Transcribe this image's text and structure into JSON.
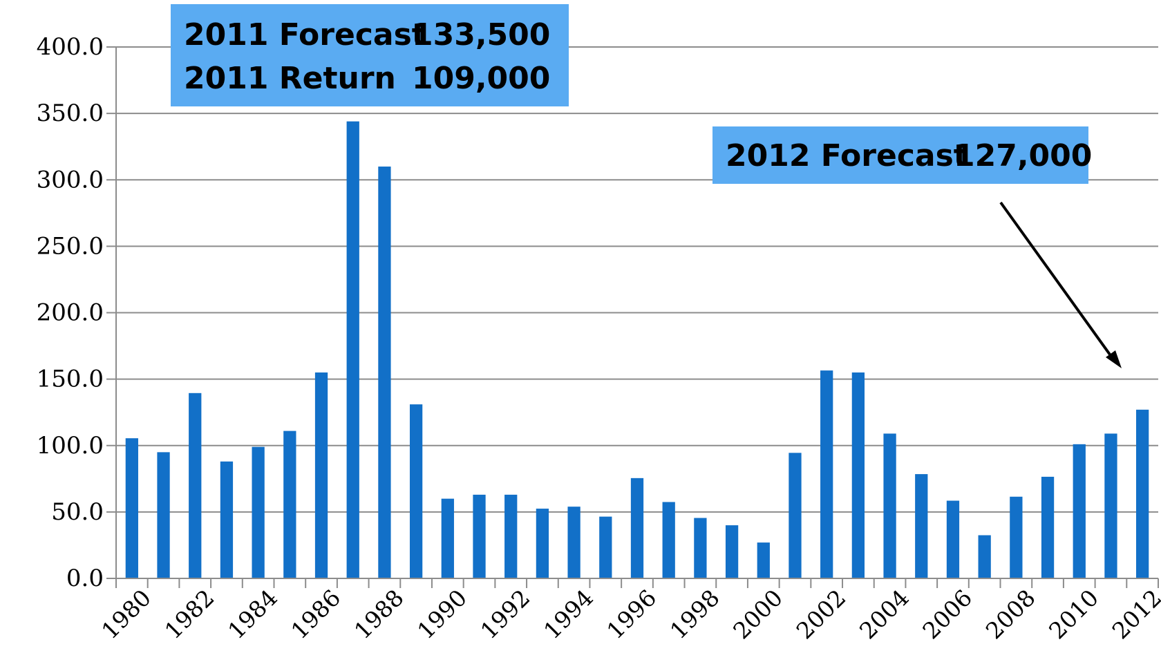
{
  "chart_data": {
    "type": "bar",
    "categories": [
      "1980",
      "1981",
      "1982",
      "1983",
      "1984",
      "1985",
      "1986",
      "1987",
      "1988",
      "1989",
      "1990",
      "1991",
      "1992",
      "1993",
      "1994",
      "1995",
      "1996",
      "1997",
      "1998",
      "1999",
      "2000",
      "2001",
      "2002",
      "2003",
      "2004",
      "2005",
      "2006",
      "2007",
      "2008",
      "2009",
      "2010",
      "2011",
      "2012"
    ],
    "values": [
      105.5,
      95,
      139.5,
      88,
      99,
      111,
      155,
      344,
      310,
      131,
      60,
      63,
      63,
      52.5,
      54,
      46.5,
      75.5,
      57.5,
      45.5,
      40,
      27,
      94.5,
      156.5,
      155,
      109,
      78.5,
      58.5,
      32.5,
      61.5,
      76.5,
      101,
      109,
      127
    ],
    "x_tick_labels": [
      "1980",
      "1982",
      "1984",
      "1986",
      "1988",
      "1990",
      "1992",
      "1994",
      "1996",
      "1998",
      "2000",
      "2002",
      "2004",
      "2006",
      "2008",
      "2010",
      "2012"
    ],
    "y_tick_labels": [
      "0.0",
      "50.0",
      "100.0",
      "150.0",
      "200.0",
      "250.0",
      "300.0",
      "350.0",
      "400.0"
    ],
    "ylim": [
      0,
      400
    ],
    "title": "",
    "xlabel": "",
    "ylabel": "",
    "grid": "horizontal",
    "bar_color": "#1270c8",
    "annotations": [
      {
        "lines": [
          {
            "label": "2011 Forecast",
            "value": "133,500"
          },
          {
            "label": "2011 Return",
            "value": "109,000"
          }
        ],
        "background": "#5aabf2"
      },
      {
        "lines": [
          {
            "label": "2012 Forecast",
            "value": "127,000"
          }
        ],
        "background": "#5aabf2",
        "arrow_target": "2012"
      }
    ]
  }
}
